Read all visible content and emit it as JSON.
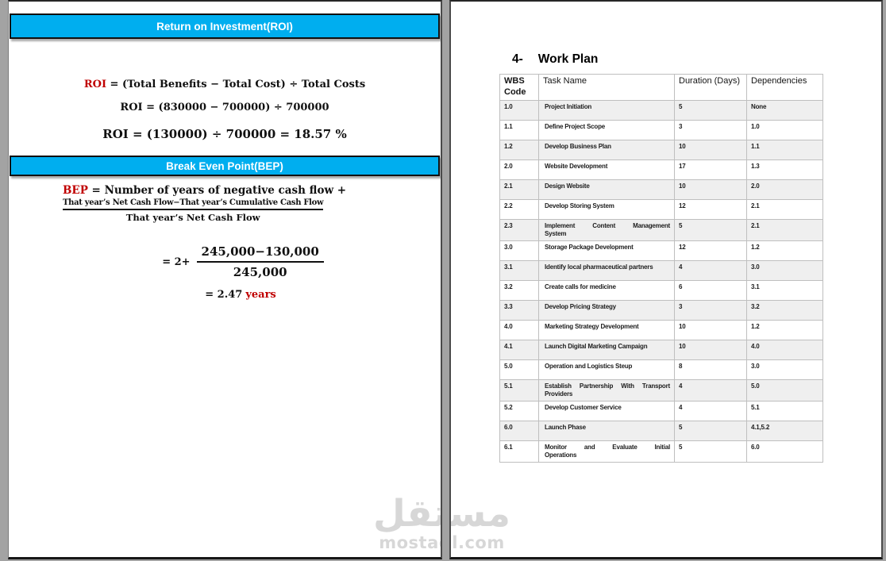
{
  "left_page": {
    "roi_banner": "Return on Investment(ROI)",
    "roi_label": "ROI",
    "roi_formula": " = (Total Benefits − Total Cost) ÷ Total Costs",
    "roi_calc1": "ROI = (830000 − 700000) ÷ 700000",
    "roi_calc2": "ROI = (130000) ÷ 700000 = 18.57 %",
    "bep_banner": "Break Even Point(BEP)",
    "bep_label": "BEP",
    "bep_formula": " = Number of years of negative cash flow +",
    "bep_numerator": "That year’s Net Cash Flow−That year’s Cumulative Cash Flow",
    "bep_denominator": "That year’s Net Cash Flow",
    "calc_prefix": "= 2+",
    "calc_numerator": "245,000−130,000",
    "calc_denominator": "245,000",
    "result_value": "= 2.47",
    "result_unit": "years"
  },
  "right_page": {
    "section_number": "4-",
    "section_title": "Work Plan",
    "table": {
      "headers": [
        "WBS Code",
        "Task Name",
        "Duration (Days)",
        "Dependencies"
      ],
      "rows": [
        {
          "code": "1.0",
          "task": "Project Initiation",
          "duration": "5",
          "deps": "None"
        },
        {
          "code": "1.1",
          "task": "Define Project Scope",
          "duration": "3",
          "deps": "1.0"
        },
        {
          "code": "1.2",
          "task": "Develop Business Plan",
          "duration": "10",
          "deps": "1.1"
        },
        {
          "code": "2.0",
          "task": "Website Development",
          "duration": "17",
          "deps": "1.3"
        },
        {
          "code": "2.1",
          "task": "Design Website",
          "duration": "10",
          "deps": "2.0"
        },
        {
          "code": "2.2",
          "task": "Develop Storing System",
          "duration": "12",
          "deps": "2.1"
        },
        {
          "code": "2.3",
          "task": "Implement Content Management\nSystem",
          "duration": "5",
          "deps": "2.1"
        },
        {
          "code": "3.0",
          "task": "Storage Package Development",
          "duration": "12",
          "deps": "1.2"
        },
        {
          "code": "3.1",
          "task": "Identify local pharmaceutical partners",
          "duration": "4",
          "deps": "3.0"
        },
        {
          "code": "3.2",
          "task": "Create calls for medicine",
          "duration": "6",
          "deps": "3.1"
        },
        {
          "code": "3.3",
          "task": "Develop Pricing Strategy",
          "duration": "3",
          "deps": "3.2"
        },
        {
          "code": "4.0",
          "task": "Marketing Strategy Development",
          "duration": "10",
          "deps": "1.2"
        },
        {
          "code": "4.1",
          "task": "Launch Digital Marketing Campaign",
          "duration": "10",
          "deps": "4.0"
        },
        {
          "code": "5.0",
          "task": "Operation and Logistics Steup",
          "duration": "8",
          "deps": "3.0"
        },
        {
          "code": "5.1",
          "task": "Establish Partnership With Transport\nProviders",
          "duration": "4",
          "deps": "5.0"
        },
        {
          "code": "5.2",
          "task": "Develop Customer Service",
          "duration": "4",
          "deps": "5.1"
        },
        {
          "code": "6.0",
          "task": "Launch Phase",
          "duration": "5",
          "deps": "4.1,5.2"
        },
        {
          "code": "6.1",
          "task": "Monitor and Evaluate Initial\nOperations",
          "duration": "5",
          "deps": "6.0"
        }
      ]
    }
  },
  "watermark": {
    "arabic": "مستقل",
    "latin": "mostaql.com"
  },
  "colors": {
    "banner_blue": "#00AEEF",
    "accent_red": "#C00000",
    "row_shade": "#EFEFEF",
    "table_border": "#BFBFBF",
    "page_background": "#FFFFFF",
    "app_background": "#A3A3A3",
    "watermark_gray": "#D7D7D7"
  }
}
